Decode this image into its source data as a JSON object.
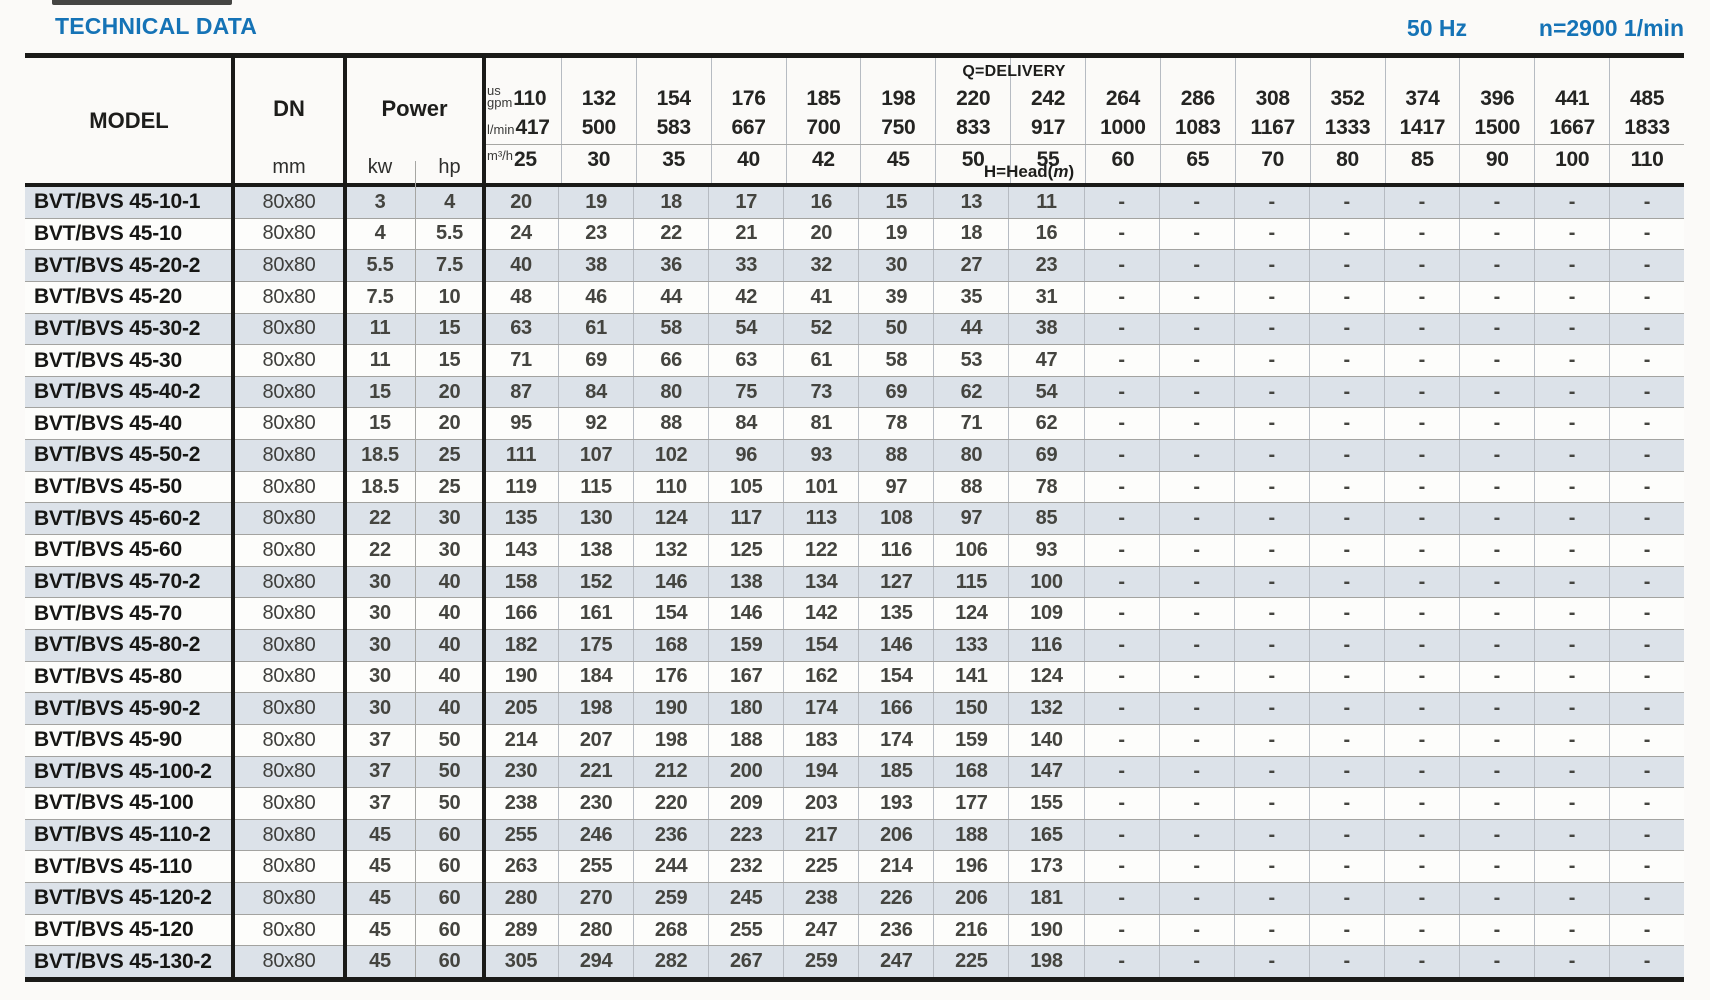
{
  "page": {
    "title": "TECHNICAL DATA",
    "frequency": "50 Hz",
    "rotation_speed": "n=2900 1/min"
  },
  "colors": {
    "accent_blue": "#1573b6",
    "row_shade": "#dce2e9",
    "grid_dark": "#1a1a18"
  },
  "table": {
    "columns": {
      "model": "MODEL",
      "dn": "DN",
      "dn_unit": "mm",
      "power": "Power",
      "power_kw": "kw",
      "power_hp": "hp"
    },
    "delivery": {
      "title": "Q=DELIVERY",
      "head_prefix": "H=Head(",
      "head_unit": "m",
      "head_suffix": ")",
      "unit_rows": [
        {
          "name": "us-gpm",
          "label_lines": [
            "us",
            "gpm"
          ],
          "values": [
            "110",
            "132",
            "154",
            "176",
            "185",
            "198",
            "220",
            "242",
            "264",
            "286",
            "308",
            "352",
            "374",
            "396",
            "441",
            "485"
          ]
        },
        {
          "name": "l-min",
          "label_lines": [
            "l/min"
          ],
          "values": [
            "417",
            "500",
            "583",
            "667",
            "700",
            "750",
            "833",
            "917",
            "1000",
            "1083",
            "1167",
            "1333",
            "1417",
            "1500",
            "1667",
            "1833"
          ]
        },
        {
          "name": "m3-h",
          "label_lines": [
            "m³/h"
          ],
          "values": [
            "25",
            "30",
            "35",
            "40",
            "42",
            "45",
            "50",
            "55",
            "60",
            "65",
            "70",
            "80",
            "85",
            "90",
            "100",
            "110"
          ]
        }
      ]
    },
    "rows": [
      {
        "model": "BVT/BVS 45-10-1",
        "dn": "80x80",
        "kw": "3",
        "hp": "4",
        "head": [
          "20",
          "19",
          "18",
          "17",
          "16",
          "15",
          "13",
          "11",
          "-",
          "-",
          "-",
          "-",
          "-",
          "-",
          "-",
          "-"
        ]
      },
      {
        "model": "BVT/BVS 45-10",
        "dn": "80x80",
        "kw": "4",
        "hp": "5.5",
        "head": [
          "24",
          "23",
          "22",
          "21",
          "20",
          "19",
          "18",
          "16",
          "-",
          "-",
          "-",
          "-",
          "-",
          "-",
          "-",
          "-"
        ]
      },
      {
        "model": "BVT/BVS 45-20-2",
        "dn": "80x80",
        "kw": "5.5",
        "hp": "7.5",
        "head": [
          "40",
          "38",
          "36",
          "33",
          "32",
          "30",
          "27",
          "23",
          "-",
          "-",
          "-",
          "-",
          "-",
          "-",
          "-",
          "-"
        ]
      },
      {
        "model": "BVT/BVS 45-20",
        "dn": "80x80",
        "kw": "7.5",
        "hp": "10",
        "head": [
          "48",
          "46",
          "44",
          "42",
          "41",
          "39",
          "35",
          "31",
          "-",
          "-",
          "-",
          "-",
          "-",
          "-",
          "-",
          "-"
        ]
      },
      {
        "model": "BVT/BVS 45-30-2",
        "dn": "80x80",
        "kw": "11",
        "hp": "15",
        "head": [
          "63",
          "61",
          "58",
          "54",
          "52",
          "50",
          "44",
          "38",
          "-",
          "-",
          "-",
          "-",
          "-",
          "-",
          "-",
          "-"
        ]
      },
      {
        "model": "BVT/BVS 45-30",
        "dn": "80x80",
        "kw": "11",
        "hp": "15",
        "head": [
          "71",
          "69",
          "66",
          "63",
          "61",
          "58",
          "53",
          "47",
          "-",
          "-",
          "-",
          "-",
          "-",
          "-",
          "-",
          "-"
        ]
      },
      {
        "model": "BVT/BVS 45-40-2",
        "dn": "80x80",
        "kw": "15",
        "hp": "20",
        "head": [
          "87",
          "84",
          "80",
          "75",
          "73",
          "69",
          "62",
          "54",
          "-",
          "-",
          "-",
          "-",
          "-",
          "-",
          "-",
          "-"
        ]
      },
      {
        "model": "BVT/BVS 45-40",
        "dn": "80x80",
        "kw": "15",
        "hp": "20",
        "head": [
          "95",
          "92",
          "88",
          "84",
          "81",
          "78",
          "71",
          "62",
          "-",
          "-",
          "-",
          "-",
          "-",
          "-",
          "-",
          "-"
        ]
      },
      {
        "model": "BVT/BVS 45-50-2",
        "dn": "80x80",
        "kw": "18.5",
        "hp": "25",
        "head": [
          "111",
          "107",
          "102",
          "96",
          "93",
          "88",
          "80",
          "69",
          "-",
          "-",
          "-",
          "-",
          "-",
          "-",
          "-",
          "-"
        ]
      },
      {
        "model": "BVT/BVS 45-50",
        "dn": "80x80",
        "kw": "18.5",
        "hp": "25",
        "head": [
          "119",
          "115",
          "110",
          "105",
          "101",
          "97",
          "88",
          "78",
          "-",
          "-",
          "-",
          "-",
          "-",
          "-",
          "-",
          "-"
        ]
      },
      {
        "model": "BVT/BVS 45-60-2",
        "dn": "80x80",
        "kw": "22",
        "hp": "30",
        "head": [
          "135",
          "130",
          "124",
          "117",
          "113",
          "108",
          "97",
          "85",
          "-",
          "-",
          "-",
          "-",
          "-",
          "-",
          "-",
          "-"
        ]
      },
      {
        "model": "BVT/BVS 45-60",
        "dn": "80x80",
        "kw": "22",
        "hp": "30",
        "head": [
          "143",
          "138",
          "132",
          "125",
          "122",
          "116",
          "106",
          "93",
          "-",
          "-",
          "-",
          "-",
          "-",
          "-",
          "-",
          "-"
        ]
      },
      {
        "model": "BVT/BVS 45-70-2",
        "dn": "80x80",
        "kw": "30",
        "hp": "40",
        "head": [
          "158",
          "152",
          "146",
          "138",
          "134",
          "127",
          "115",
          "100",
          "-",
          "-",
          "-",
          "-",
          "-",
          "-",
          "-",
          "-"
        ]
      },
      {
        "model": "BVT/BVS 45-70",
        "dn": "80x80",
        "kw": "30",
        "hp": "40",
        "head": [
          "166",
          "161",
          "154",
          "146",
          "142",
          "135",
          "124",
          "109",
          "-",
          "-",
          "-",
          "-",
          "-",
          "-",
          "-",
          "-"
        ]
      },
      {
        "model": "BVT/BVS 45-80-2",
        "dn": "80x80",
        "kw": "30",
        "hp": "40",
        "head": [
          "182",
          "175",
          "168",
          "159",
          "154",
          "146",
          "133",
          "116",
          "-",
          "-",
          "-",
          "-",
          "-",
          "-",
          "-",
          "-"
        ]
      },
      {
        "model": "BVT/BVS 45-80",
        "dn": "80x80",
        "kw": "30",
        "hp": "40",
        "head": [
          "190",
          "184",
          "176",
          "167",
          "162",
          "154",
          "141",
          "124",
          "-",
          "-",
          "-",
          "-",
          "-",
          "-",
          "-",
          "-"
        ]
      },
      {
        "model": "BVT/BVS 45-90-2",
        "dn": "80x80",
        "kw": "30",
        "hp": "40",
        "head": [
          "205",
          "198",
          "190",
          "180",
          "174",
          "166",
          "150",
          "132",
          "-",
          "-",
          "-",
          "-",
          "-",
          "-",
          "-",
          "-"
        ]
      },
      {
        "model": "BVT/BVS 45-90",
        "dn": "80x80",
        "kw": "37",
        "hp": "50",
        "head": [
          "214",
          "207",
          "198",
          "188",
          "183",
          "174",
          "159",
          "140",
          "-",
          "-",
          "-",
          "-",
          "-",
          "-",
          "-",
          "-"
        ]
      },
      {
        "model": "BVT/BVS 45-100-2",
        "dn": "80x80",
        "kw": "37",
        "hp": "50",
        "head": [
          "230",
          "221",
          "212",
          "200",
          "194",
          "185",
          "168",
          "147",
          "-",
          "-",
          "-",
          "-",
          "-",
          "-",
          "-",
          "-"
        ]
      },
      {
        "model": "BVT/BVS 45-100",
        "dn": "80x80",
        "kw": "37",
        "hp": "50",
        "head": [
          "238",
          "230",
          "220",
          "209",
          "203",
          "193",
          "177",
          "155",
          "-",
          "-",
          "-",
          "-",
          "-",
          "-",
          "-",
          "-"
        ]
      },
      {
        "model": "BVT/BVS 45-110-2",
        "dn": "80x80",
        "kw": "45",
        "hp": "60",
        "head": [
          "255",
          "246",
          "236",
          "223",
          "217",
          "206",
          "188",
          "165",
          "-",
          "-",
          "-",
          "-",
          "-",
          "-",
          "-",
          "-"
        ]
      },
      {
        "model": "BVT/BVS 45-110",
        "dn": "80x80",
        "kw": "45",
        "hp": "60",
        "head": [
          "263",
          "255",
          "244",
          "232",
          "225",
          "214",
          "196",
          "173",
          "-",
          "-",
          "-",
          "-",
          "-",
          "-",
          "-",
          "-"
        ]
      },
      {
        "model": "BVT/BVS 45-120-2",
        "dn": "80x80",
        "kw": "45",
        "hp": "60",
        "head": [
          "280",
          "270",
          "259",
          "245",
          "238",
          "226",
          "206",
          "181",
          "-",
          "-",
          "-",
          "-",
          "-",
          "-",
          "-",
          "-"
        ]
      },
      {
        "model": "BVT/BVS 45-120",
        "dn": "80x80",
        "kw": "45",
        "hp": "60",
        "head": [
          "289",
          "280",
          "268",
          "255",
          "247",
          "236",
          "216",
          "190",
          "-",
          "-",
          "-",
          "-",
          "-",
          "-",
          "-",
          "-"
        ]
      },
      {
        "model": "BVT/BVS 45-130-2",
        "dn": "80x80",
        "kw": "45",
        "hp": "60",
        "head": [
          "305",
          "294",
          "282",
          "267",
          "259",
          "247",
          "225",
          "198",
          "-",
          "-",
          "-",
          "-",
          "-",
          "-",
          "-",
          "-"
        ]
      }
    ]
  }
}
